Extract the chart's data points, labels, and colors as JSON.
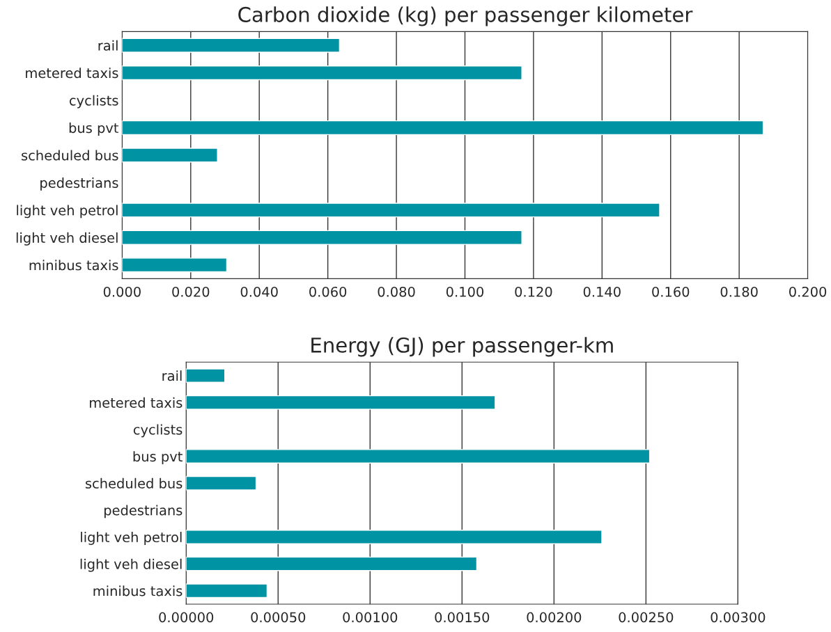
{
  "chart_data": [
    {
      "type": "bar",
      "orientation": "horizontal",
      "title": "Carbon dioxide (kg) per passenger kilometer",
      "categories": [
        "rail",
        "metered taxis",
        "cyclists",
        "bus pvt",
        "scheduled bus",
        "pedestrians",
        "light veh petrol",
        "light veh diesel",
        "minibus taxis"
      ],
      "values": [
        0.0634,
        0.1166,
        null,
        0.187,
        0.0278,
        null,
        0.1568,
        0.1166,
        0.0305
      ],
      "color": "#0093a3",
      "xlim": [
        0,
        0.2
      ],
      "xticks": [
        {
          "value": 0,
          "label": "0.000"
        },
        {
          "value": 0.02,
          "label": "0.020"
        },
        {
          "value": 0.04,
          "label": "0.040"
        },
        {
          "value": 0.06,
          "label": "0.060"
        },
        {
          "value": 0.08,
          "label": "0.080"
        },
        {
          "value": 0.1,
          "label": "0.100"
        },
        {
          "value": 0.12,
          "label": "0.120"
        },
        {
          "value": 0.14,
          "label": "0.140"
        },
        {
          "value": 0.16,
          "label": "0.160"
        },
        {
          "value": 0.18,
          "label": "0.180"
        },
        {
          "value": 0.2,
          "label": "0.200"
        }
      ],
      "grid": "x"
    },
    {
      "type": "bar",
      "orientation": "horizontal",
      "title": "Energy (GJ) per passenger-km",
      "categories": [
        "rail",
        "metered taxis",
        "cyclists",
        "bus pvt",
        "scheduled bus",
        "pedestrians",
        "light veh petrol",
        "light veh diesel",
        "minibus taxis"
      ],
      "values": [
        0.00021,
        0.00168,
        null,
        0.00252,
        0.00038,
        null,
        0.00226,
        0.00158,
        0.00044
      ],
      "color": "#0093a3",
      "xlim": [
        0,
        0.003
      ],
      "xticks": [
        {
          "value": 0,
          "label": "0.00000"
        },
        {
          "value": 0.0005,
          "label": "0.00050"
        },
        {
          "value": 0.001,
          "label": "0.00100"
        },
        {
          "value": 0.0015,
          "label": "0.00150"
        },
        {
          "value": 0.002,
          "label": "0.00200"
        },
        {
          "value": 0.0025,
          "label": "0.00250"
        },
        {
          "value": 0.003,
          "label": "0.00300"
        }
      ],
      "grid": "x"
    }
  ]
}
